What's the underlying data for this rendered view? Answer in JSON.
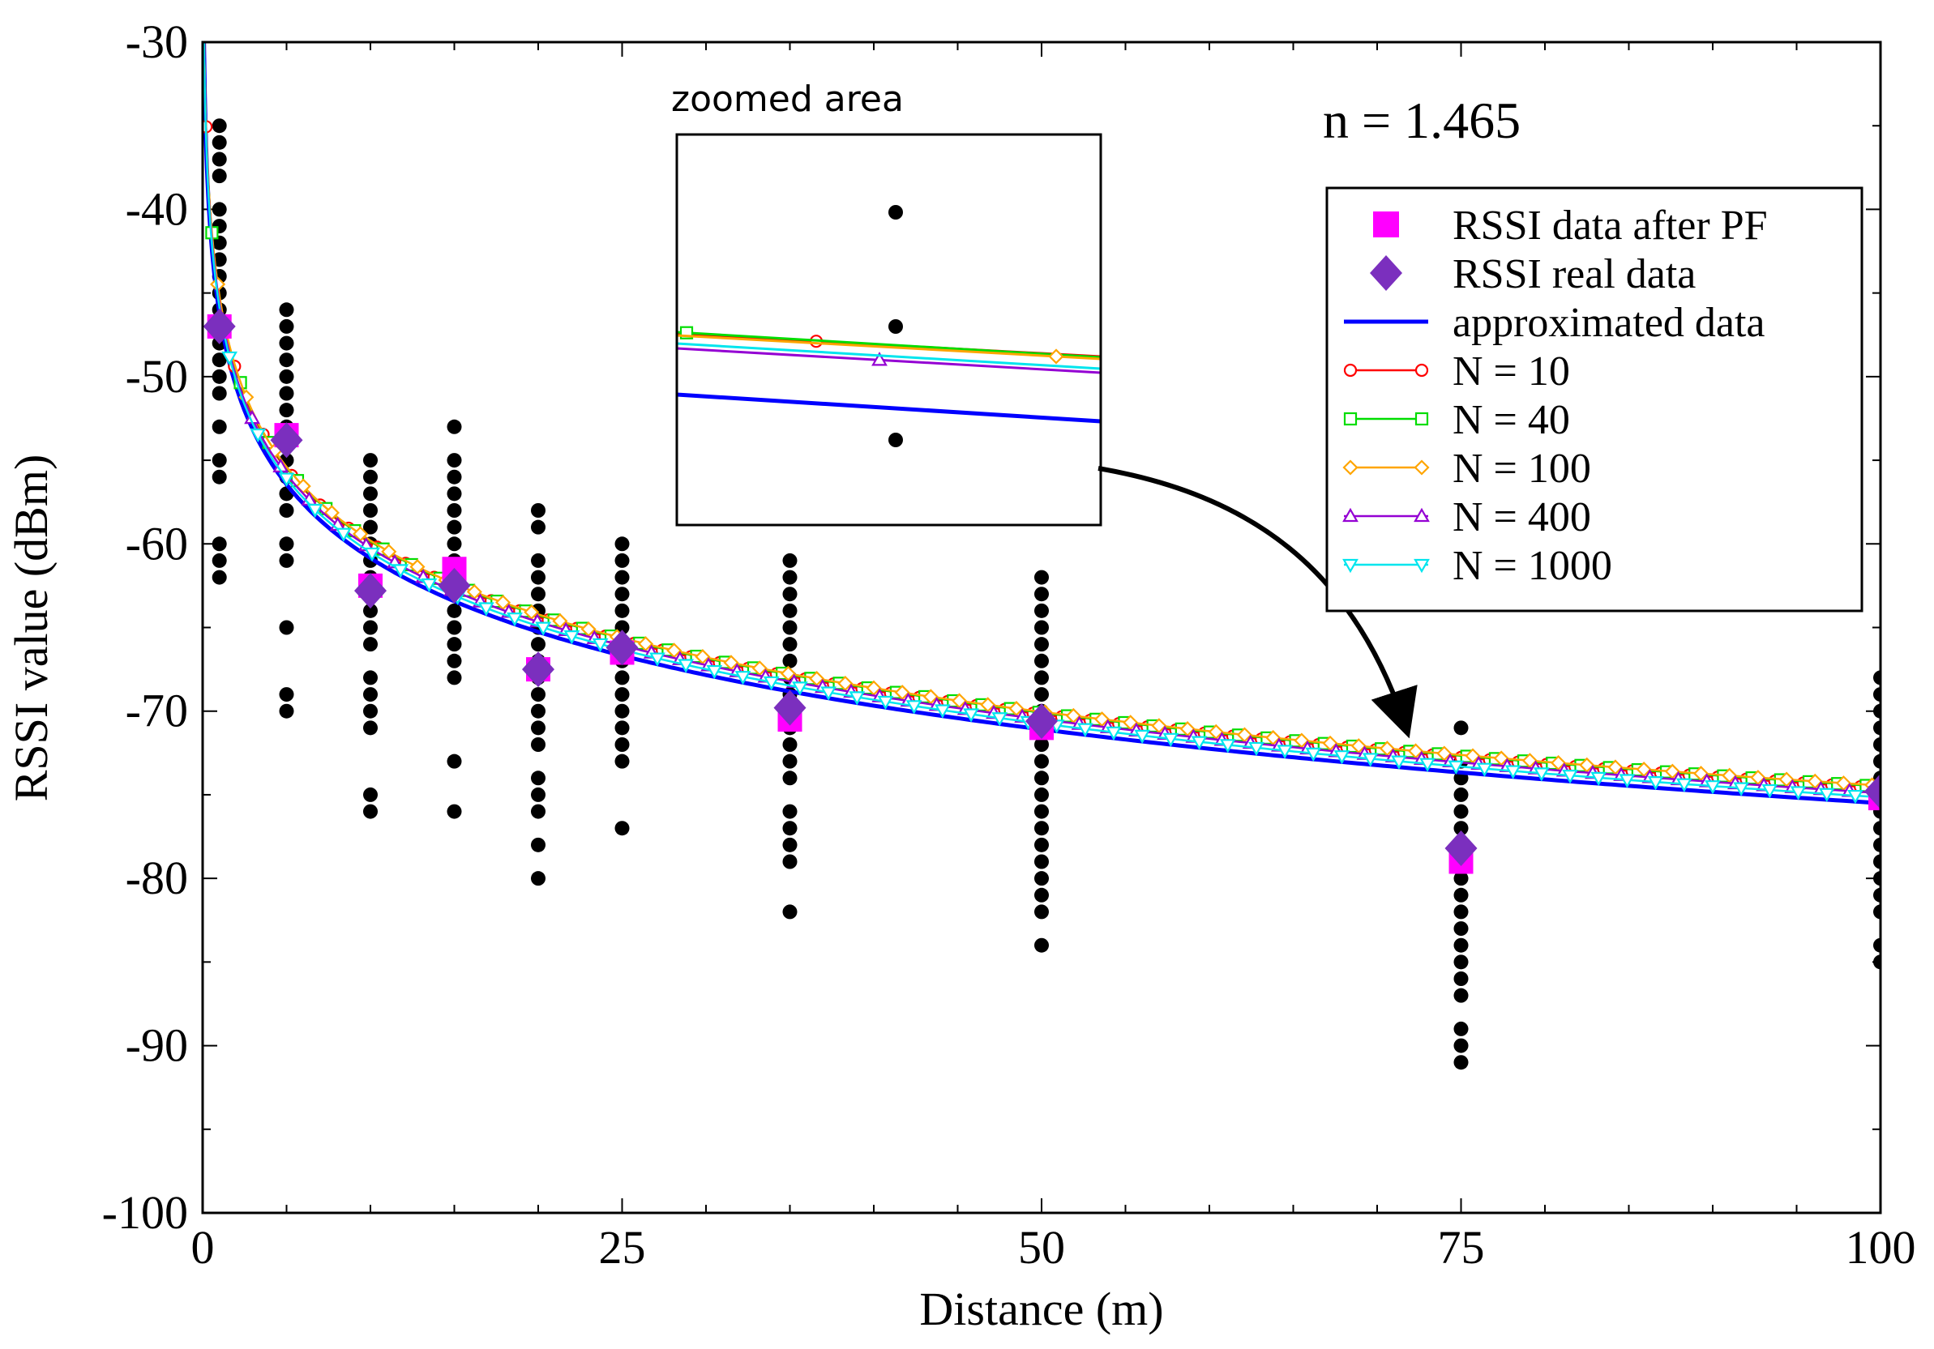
{
  "chart_data": {
    "type": "scatter",
    "title": "",
    "xlabel": "Distance (m)",
    "ylabel": "RSSI value (dBm)",
    "xlim": [
      0,
      100
    ],
    "ylim": [
      -100,
      -30
    ],
    "x_ticks": [
      "0",
      "25",
      "50",
      "75",
      "100"
    ],
    "y_ticks": [
      "-100",
      "-90",
      "-80",
      "-70",
      "-60",
      "-50",
      "-40",
      "-30"
    ],
    "annotation": "n = 1.465",
    "inset_label": "zoomed area",
    "model": {
      "rssi_at_1m": -46.2,
      "path_loss_exponent": 1.465
    },
    "raw_samples": [
      {
        "x": 1,
        "values": [
          -35,
          -36,
          -37,
          -38,
          -40,
          -41,
          -42,
          -43,
          -44,
          -45,
          -46,
          -47,
          -48,
          -49,
          -50,
          -51,
          -53,
          -55,
          -56,
          -60,
          -61,
          -62
        ]
      },
      {
        "x": 5,
        "values": [
          -46,
          -47,
          -48,
          -49,
          -50,
          -51,
          -52,
          -53,
          -54,
          -55,
          -56,
          -57,
          -58,
          -60,
          -61,
          -65,
          -69,
          -70
        ]
      },
      {
        "x": 10,
        "values": [
          -55,
          -56,
          -57,
          -58,
          -59,
          -60,
          -61,
          -62,
          -63,
          -64,
          -65,
          -66,
          -68,
          -69,
          -70,
          -71,
          -75,
          -76
        ]
      },
      {
        "x": 15,
        "values": [
          -53,
          -55,
          -56,
          -57,
          -58,
          -59,
          -60,
          -61,
          -62,
          -63,
          -64,
          -65,
          -66,
          -67,
          -68,
          -73,
          -76
        ]
      },
      {
        "x": 20,
        "values": [
          -58,
          -59,
          -61,
          -62,
          -63,
          -64,
          -65,
          -66,
          -67,
          -68,
          -69,
          -70,
          -71,
          -72,
          -74,
          -75,
          -76,
          -78,
          -80
        ]
      },
      {
        "x": 25,
        "values": [
          -60,
          -61,
          -62,
          -63,
          -64,
          -65,
          -66,
          -67,
          -68,
          -69,
          -70,
          -71,
          -72,
          -73,
          -77
        ]
      },
      {
        "x": 35,
        "values": [
          -61,
          -62,
          -63,
          -64,
          -65,
          -66,
          -67,
          -68,
          -69,
          -70,
          -71,
          -72,
          -73,
          -74,
          -76,
          -77,
          -78,
          -79,
          -82
        ]
      },
      {
        "x": 50,
        "values": [
          -62,
          -63,
          -64,
          -65,
          -66,
          -67,
          -68,
          -69,
          -70,
          -71,
          -72,
          -73,
          -74,
          -75,
          -76,
          -77,
          -78,
          -79,
          -80,
          -81,
          -82,
          -84
        ]
      },
      {
        "x": 75,
        "values": [
          -71,
          -73,
          -74,
          -75,
          -76,
          -77,
          -78,
          -79,
          -80,
          -81,
          -82,
          -83,
          -84,
          -85,
          -86,
          -87,
          -89,
          -90,
          -91
        ]
      },
      {
        "x": 100,
        "values": [
          -68,
          -69,
          -70,
          -71,
          -72,
          -73,
          -74,
          -75,
          -76,
          -77,
          -78,
          -79,
          -80,
          -81,
          -82,
          -84,
          -85
        ]
      }
    ],
    "series": [
      {
        "name": "RSSI data after PF",
        "color": "#ff00ff",
        "marker": "square",
        "x": [
          1,
          5,
          10,
          15,
          20,
          25,
          35,
          50,
          75,
          100
        ],
        "values": [
          -47.0,
          -53.5,
          -62.5,
          -61.5,
          -67.5,
          -66.5,
          -70.5,
          -71.0,
          -79.0,
          -75.2
        ]
      },
      {
        "name": "RSSI real data",
        "color": "#7b2fbe",
        "marker": "diamond",
        "x": [
          1,
          5,
          10,
          15,
          20,
          25,
          35,
          50,
          75,
          100
        ],
        "values": [
          -47.0,
          -53.8,
          -62.8,
          -62.5,
          -67.5,
          -66.2,
          -69.8,
          -70.6,
          -78.2,
          -74.8
        ]
      },
      {
        "name": "approximated data",
        "color": "#0000ff",
        "marker": "line"
      },
      {
        "name": "N = 10",
        "color": "#ff0000",
        "marker": "circle"
      },
      {
        "name": "N = 40",
        "color": "#00dd00",
        "marker": "square-open"
      },
      {
        "name": "N = 100",
        "color": "#ffa500",
        "marker": "diamond-open"
      },
      {
        "name": "N = 400",
        "color": "#9400d3",
        "marker": "triangle-up-open"
      },
      {
        "name": "N = 1000",
        "color": "#00e5ee",
        "marker": "triangle-down-open"
      }
    ]
  }
}
